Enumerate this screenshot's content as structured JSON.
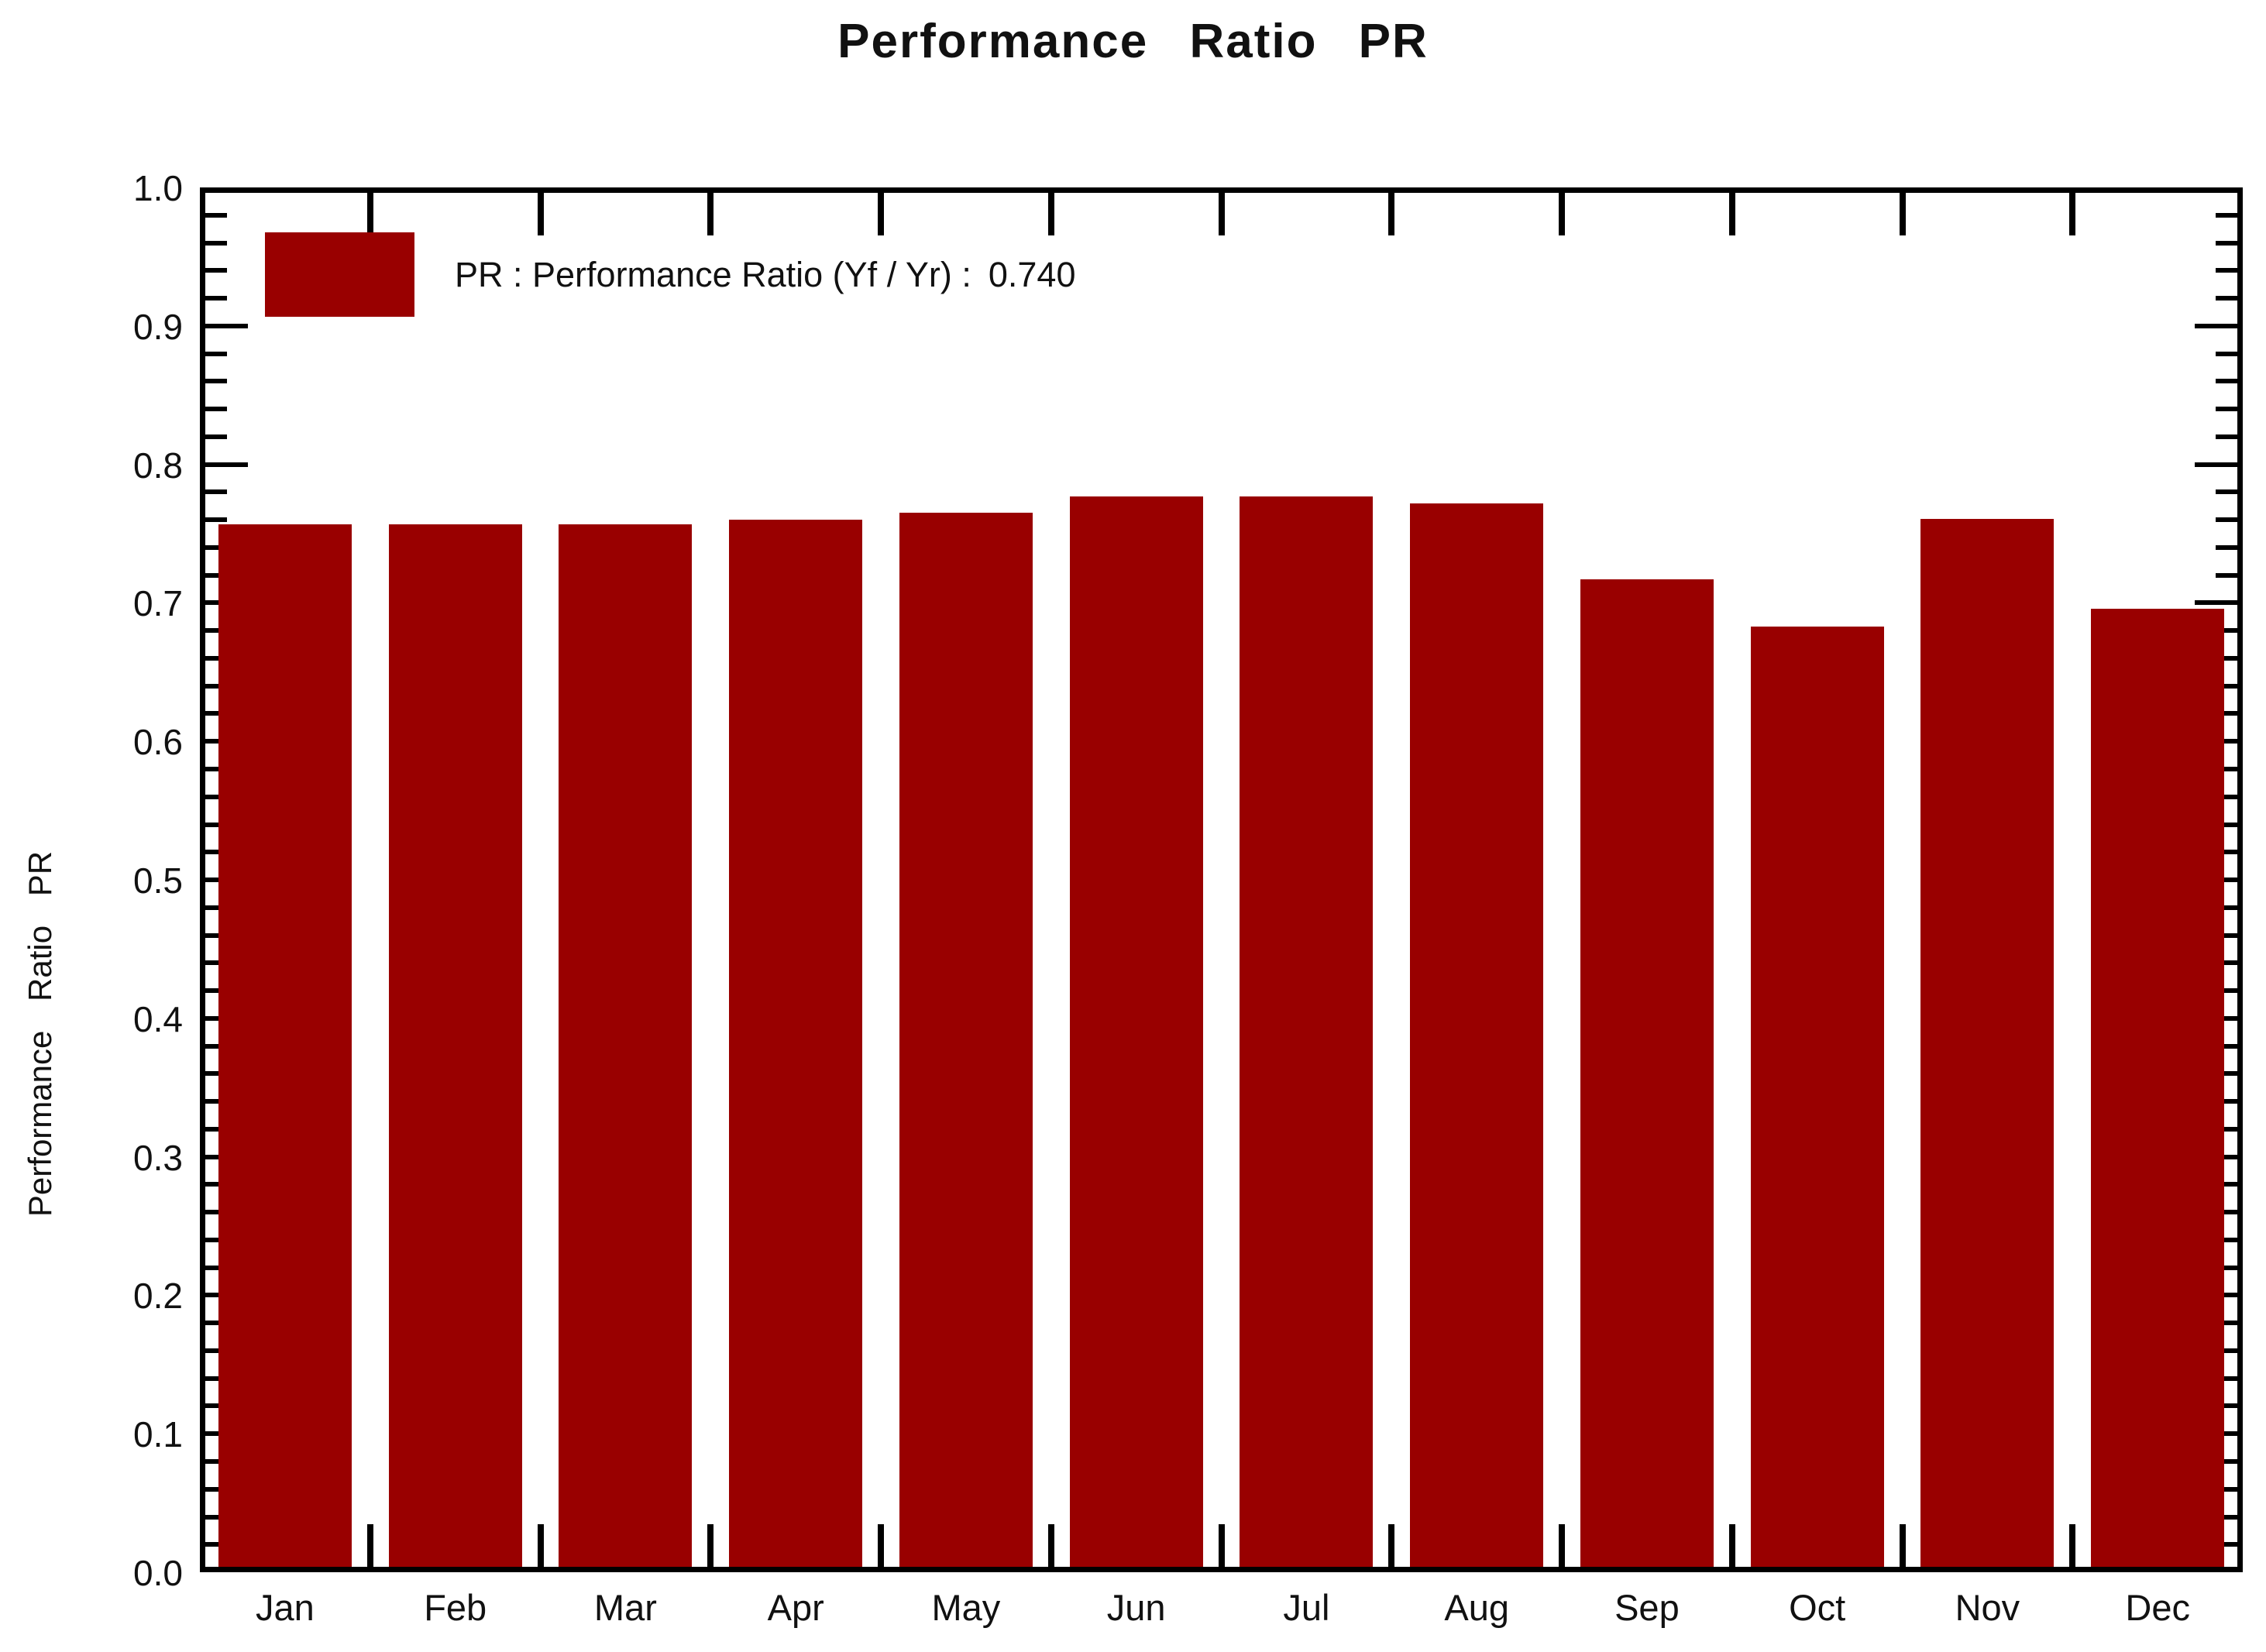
{
  "title": "Performance Ratio PR",
  "chart_data": {
    "type": "bar",
    "title": "Performance Ratio PR",
    "xlabel": "",
    "ylabel": "Performance Ratio PR",
    "categories": [
      "Jan",
      "Feb",
      "Mar",
      "Apr",
      "May",
      "Jun",
      "Jul",
      "Aug",
      "Sep",
      "Oct",
      "Nov",
      "Dec"
    ],
    "values": [
      0.753,
      0.753,
      0.753,
      0.756,
      0.761,
      0.773,
      0.773,
      0.768,
      0.713,
      0.679,
      0.757,
      0.692
    ],
    "ylim": [
      0.0,
      1.0
    ],
    "y_major_step": 0.1,
    "y_minor_step": 0.02,
    "y_tick_labels": [
      "0.0",
      "0.1",
      "0.2",
      "0.3",
      "0.4",
      "0.5",
      "0.6",
      "0.7",
      "0.8",
      "0.9",
      "1.0"
    ],
    "grid": false,
    "bar_color": "#990000",
    "legend": {
      "position": "top-left",
      "swatch_color": "#990000",
      "label": "PR : Performance Ratio (Yf / Yr) :",
      "value": "0.740"
    }
  }
}
